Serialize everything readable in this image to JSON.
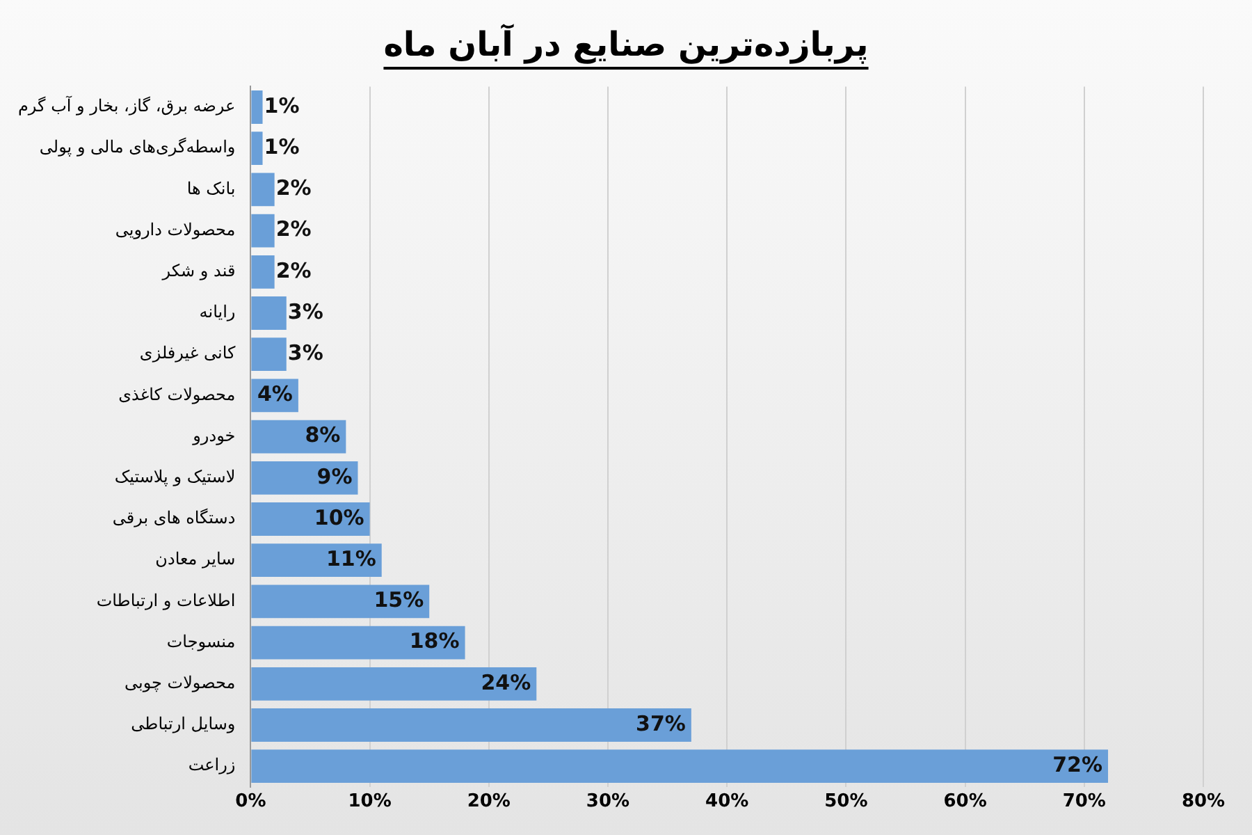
{
  "chart_data": {
    "type": "bar",
    "orientation": "horizontal",
    "title": "پربازده‌ترین صنایع در آبان ماه",
    "categories": [
      "عرضه برق، گاز، بخار و آب گرم",
      "واسطه‌گری‌های مالی و پولی",
      "بانک ها",
      "محصولات دارویی",
      "قند و شکر",
      "رایانه",
      "کانی غیرفلزی",
      "محصولات کاغذی",
      "خودرو",
      "لاستیک و پلاستیک",
      "دستگاه های برقی",
      "سایر معادن",
      "اطلاعات و ارتباطات",
      "منسوجات",
      "محصولات چوبی",
      "وسایل ارتباطی",
      "زراعت"
    ],
    "values": [
      1,
      1,
      2,
      2,
      2,
      3,
      3,
      4,
      8,
      9,
      10,
      11,
      15,
      18,
      24,
      37,
      72
    ],
    "value_labels": [
      "1%",
      "1%",
      "2%",
      "2%",
      "2%",
      "3%",
      "3%",
      "4%",
      "8%",
      "9%",
      "10%",
      "11%",
      "15%",
      "18%",
      "24%",
      "37%",
      "72%"
    ],
    "color": "#6a9fd8",
    "xlim": [
      0,
      80
    ],
    "xticks": [
      {
        "value": 0,
        "label": "0%"
      },
      {
        "value": 10,
        "label": "10%"
      },
      {
        "value": 20,
        "label": "20%"
      },
      {
        "value": 30,
        "label": "30%"
      },
      {
        "value": 40,
        "label": "40%"
      },
      {
        "value": 50,
        "label": "50%"
      },
      {
        "value": 60,
        "label": "60%"
      },
      {
        "value": 70,
        "label": "70%"
      },
      {
        "value": 80,
        "label": "80%"
      }
    ],
    "grid": "x"
  }
}
